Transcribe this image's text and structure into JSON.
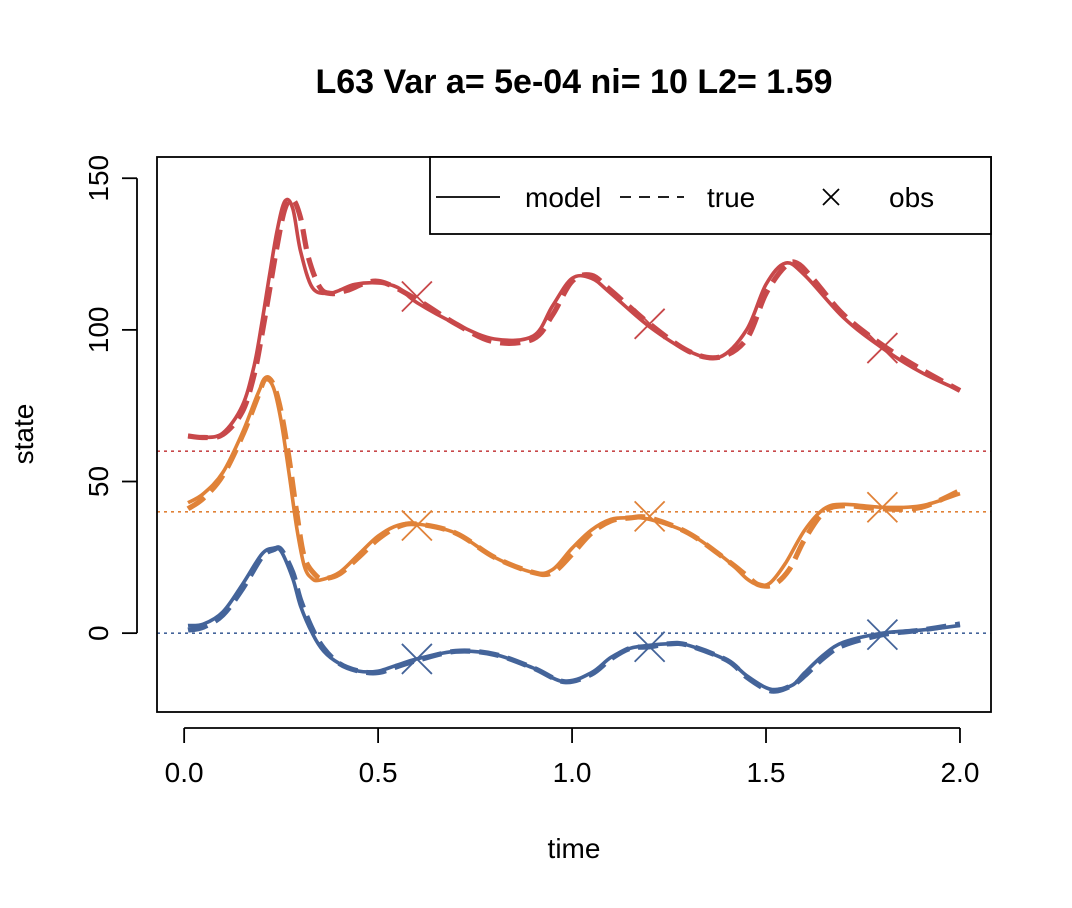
{
  "chart_data": {
    "type": "line",
    "title": "L63 Var a= 5e-04  ni= 10  L2= 1.59",
    "xlabel": "time",
    "ylabel": "state",
    "xlim": [
      -0.07,
      2.08
    ],
    "ylim": [
      -26,
      157
    ],
    "x_ticks": [
      0.0,
      0.5,
      1.0,
      1.5,
      2.0
    ],
    "x_tick_labels": [
      "0.0",
      "0.5",
      "1.0",
      "1.5",
      "2.0"
    ],
    "y_ticks": [
      0,
      50,
      100,
      150
    ],
    "y_tick_labels": [
      "0",
      "50",
      "100",
      "150"
    ],
    "grid": false,
    "legend": {
      "placement": "top-right",
      "entries": [
        {
          "label": "model",
          "style": "solid"
        },
        {
          "label": "true",
          "style": "dashed"
        },
        {
          "label": "obs",
          "style": "cross"
        }
      ]
    },
    "colors": {
      "red": "#c8484a",
      "orange": "#e08238",
      "blue": "#44649a"
    },
    "reference_lines": [
      {
        "y": 60,
        "color": "#c8484a",
        "style": "dotted"
      },
      {
        "y": 40,
        "color": "#e08238",
        "style": "dotted"
      },
      {
        "y": 0,
        "color": "#44649a",
        "style": "dotted"
      }
    ],
    "series": [
      {
        "color": "#c8484a",
        "model": {
          "x": [
            0.01,
            0.05,
            0.1,
            0.15,
            0.18,
            0.2,
            0.22,
            0.24,
            0.26,
            0.28,
            0.3,
            0.33,
            0.37,
            0.4,
            0.44,
            0.5,
            0.55,
            0.6,
            0.7,
            0.8,
            0.9,
            0.95,
            1.0,
            1.05,
            1.1,
            1.2,
            1.3,
            1.38,
            1.45,
            1.5,
            1.55,
            1.6,
            1.7,
            1.8,
            1.9,
            2.0
          ],
          "y": [
            65,
            64.5,
            66,
            75,
            88,
            102,
            118,
            133,
            142.5,
            140,
            126,
            114,
            112,
            113,
            115,
            115.5,
            114,
            109,
            102,
            97,
            98,
            108,
            117,
            117,
            112,
            101,
            93,
            91,
            100,
            115,
            122,
            118,
            104,
            94,
            86,
            80
          ]
        },
        "true": {
          "x": [
            0.01,
            0.05,
            0.1,
            0.15,
            0.18,
            0.2,
            0.22,
            0.24,
            0.26,
            0.28,
            0.3,
            0.32,
            0.35,
            0.38,
            0.42,
            0.5,
            0.6,
            0.7,
            0.8,
            0.9,
            0.95,
            1.0,
            1.05,
            1.1,
            1.2,
            1.3,
            1.38,
            1.45,
            1.5,
            1.55,
            1.58,
            1.62,
            1.7,
            1.8,
            1.9,
            2.0
          ],
          "y": [
            65,
            64.5,
            65.5,
            73,
            85,
            98,
            113,
            128,
            140,
            143,
            137,
            124,
            114,
            112,
            113,
            116,
            110,
            102,
            96,
            97,
            105,
            116,
            118,
            113,
            102,
            93,
            91,
            97,
            112,
            121,
            122,
            117,
            105,
            95,
            87,
            80
          ]
        },
        "obs": {
          "x": [
            0.6,
            1.2,
            1.8
          ],
          "y": [
            111,
            102,
            94
          ]
        }
      },
      {
        "color": "#e08238",
        "model": {
          "x": [
            0.01,
            0.05,
            0.1,
            0.15,
            0.19,
            0.21,
            0.23,
            0.25,
            0.27,
            0.29,
            0.31,
            0.33,
            0.35,
            0.4,
            0.45,
            0.5,
            0.55,
            0.6,
            0.7,
            0.8,
            0.9,
            0.95,
            1.0,
            1.05,
            1.1,
            1.15,
            1.2,
            1.3,
            1.4,
            1.45,
            1.48,
            1.51,
            1.55,
            1.6,
            1.65,
            1.7,
            1.8,
            1.9,
            2.0
          ],
          "y": [
            43,
            46,
            53,
            66,
            79,
            83.5,
            81,
            70,
            53,
            35,
            22,
            18,
            17.5,
            20,
            26,
            32,
            35.5,
            36,
            33,
            25,
            20,
            21,
            28,
            34,
            37.5,
            38,
            37.5,
            33,
            24,
            18,
            16,
            16.5,
            23,
            34,
            41,
            42.5,
            41.5,
            42,
            46
          ]
        },
        "true": {
          "x": [
            0.01,
            0.05,
            0.1,
            0.15,
            0.19,
            0.21,
            0.23,
            0.25,
            0.27,
            0.29,
            0.31,
            0.34,
            0.36,
            0.4,
            0.45,
            0.5,
            0.55,
            0.6,
            0.7,
            0.8,
            0.9,
            0.95,
            1.0,
            1.05,
            1.1,
            1.15,
            1.2,
            1.3,
            1.4,
            1.45,
            1.48,
            1.52,
            1.56,
            1.6,
            1.65,
            1.7,
            1.8,
            1.9,
            2.0
          ],
          "y": [
            41,
            44.5,
            52,
            65,
            78,
            84,
            82,
            73,
            58,
            40,
            25,
            19,
            18,
            19.5,
            25,
            31,
            35,
            36,
            33,
            25,
            20,
            20,
            26,
            33,
            37,
            38,
            38,
            33,
            24,
            19,
            16,
            16,
            21,
            31,
            40,
            42,
            41,
            41.5,
            47
          ]
        },
        "obs": {
          "x": [
            0.6,
            1.2,
            1.8
          ],
          "y": [
            35.5,
            38.5,
            41.5
          ]
        }
      },
      {
        "color": "#44649a",
        "model": {
          "x": [
            0.01,
            0.05,
            0.1,
            0.15,
            0.2,
            0.23,
            0.25,
            0.28,
            0.3,
            0.33,
            0.36,
            0.4,
            0.45,
            0.5,
            0.55,
            0.6,
            0.7,
            0.8,
            0.9,
            0.98,
            1.05,
            1.1,
            1.15,
            1.2,
            1.25,
            1.3,
            1.4,
            1.45,
            1.5,
            1.53,
            1.57,
            1.6,
            1.65,
            1.7,
            1.8,
            1.9,
            2.0
          ],
          "y": [
            2.5,
            3,
            7,
            16,
            26,
            28,
            27,
            18,
            9,
            0,
            -6,
            -10,
            -12.5,
            -12.5,
            -10.5,
            -8.5,
            -6,
            -7,
            -11.5,
            -16,
            -13,
            -8,
            -5,
            -4,
            -3.5,
            -4,
            -9,
            -14,
            -18,
            -18.5,
            -17,
            -13,
            -7,
            -3,
            0,
            1,
            2.5
          ]
        },
        "true": {
          "x": [
            0.01,
            0.05,
            0.1,
            0.15,
            0.2,
            0.23,
            0.25,
            0.28,
            0.3,
            0.33,
            0.36,
            0.4,
            0.45,
            0.5,
            0.55,
            0.6,
            0.7,
            0.8,
            0.9,
            0.98,
            1.05,
            1.1,
            1.15,
            1.2,
            1.25,
            1.3,
            1.4,
            1.45,
            1.5,
            1.53,
            1.57,
            1.6,
            1.65,
            1.7,
            1.8,
            1.9,
            2.0
          ],
          "y": [
            1,
            2,
            6,
            14.5,
            25,
            27.5,
            27.5,
            20,
            11,
            1.5,
            -5,
            -10,
            -12.5,
            -13,
            -11,
            -9,
            -6,
            -7,
            -11.5,
            -16,
            -13.5,
            -8.5,
            -5,
            -4.5,
            -3.5,
            -4,
            -9,
            -14.5,
            -18.5,
            -19,
            -17,
            -14,
            -8,
            -4,
            -0.5,
            1,
            3
          ]
        },
        "obs": {
          "x": [
            0.6,
            1.2,
            1.8
          ],
          "y": [
            -8.5,
            -4.5,
            -0.5
          ]
        }
      }
    ]
  }
}
